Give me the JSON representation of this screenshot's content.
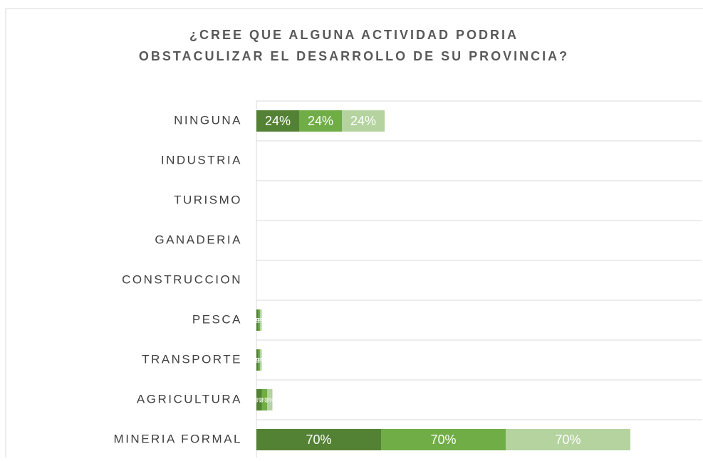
{
  "chart_data": {
    "type": "stacked_bar_horizontal",
    "title": [
      "¿CREE QUE ALGUNA ACTIVIDAD PODRIA",
      "OBSTACULIZAR EL DESARROLLO DE SU PROVINCIA?"
    ],
    "categories": [
      "NINGUNA",
      "INDUSTRIA",
      "TURISMO",
      "GANADERIA",
      "CONSTRUCCION",
      "PESCA",
      "TRANSPORTE",
      "AGRICULTURA",
      "MINERIA FORMAL"
    ],
    "series": [
      {
        "color": "#548235",
        "values": [
          24,
          0,
          0,
          0,
          0,
          1,
          1,
          3,
          70
        ],
        "value_labels": [
          "24%",
          null,
          null,
          null,
          null,
          "1%",
          "1%",
          "3%",
          "70%"
        ]
      },
      {
        "color": "#70ad47",
        "values": [
          24,
          0,
          0,
          0,
          0,
          1,
          1,
          3,
          70
        ],
        "value_labels": [
          "24%",
          null,
          null,
          null,
          null,
          "1%",
          "1%",
          "3%",
          "70%"
        ]
      },
      {
        "color": "#b4d39f",
        "values": [
          24,
          0,
          0,
          0,
          0,
          1,
          1,
          3,
          70
        ],
        "value_labels": [
          "24%",
          null,
          null,
          null,
          null,
          "1%",
          "1%",
          "3%",
          "70%"
        ]
      }
    ],
    "xlim": [
      0,
      250
    ],
    "grid": true
  }
}
